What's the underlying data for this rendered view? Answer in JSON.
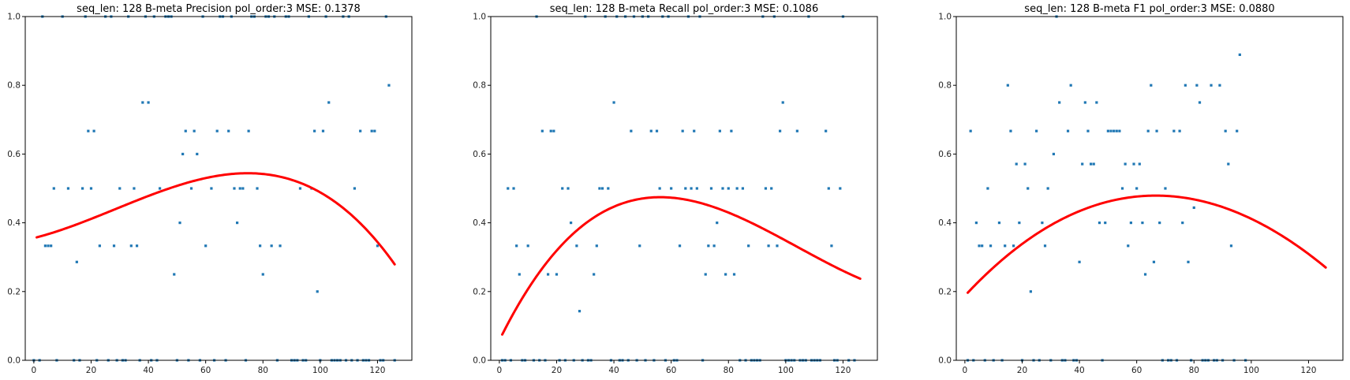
{
  "chart_data": [
    {
      "type": "scatter",
      "title": "seq_len: 128    B-meta    Precision    pol_order:3    MSE: 0.1378",
      "xlabel": "",
      "ylabel": "",
      "xlim": [
        -3,
        132
      ],
      "ylim": [
        0,
        1
      ],
      "xticks": [
        0,
        20,
        40,
        60,
        80,
        100,
        120
      ],
      "yticks": [
        0.0,
        0.2,
        0.4,
        0.6,
        0.8,
        1.0
      ],
      "grid": false,
      "point_color": "#1f77b4",
      "fit_color": "#ff0000",
      "points": [
        [
          0,
          0
        ],
        [
          2,
          0
        ],
        [
          3,
          1
        ],
        [
          4,
          0.333
        ],
        [
          5,
          0.333
        ],
        [
          6,
          0.333
        ],
        [
          7,
          0.5
        ],
        [
          8,
          0
        ],
        [
          10,
          1
        ],
        [
          12,
          0.5
        ],
        [
          14,
          0
        ],
        [
          15,
          0.286
        ],
        [
          16,
          0
        ],
        [
          17,
          0.5
        ],
        [
          18,
          1
        ],
        [
          19,
          0.667
        ],
        [
          20,
          0.5
        ],
        [
          21,
          0.667
        ],
        [
          22,
          0
        ],
        [
          23,
          0.333
        ],
        [
          25,
          1
        ],
        [
          26,
          0
        ],
        [
          27,
          1
        ],
        [
          28,
          0.333
        ],
        [
          29,
          0
        ],
        [
          30,
          0.5
        ],
        [
          31,
          0
        ],
        [
          32,
          0
        ],
        [
          33,
          1
        ],
        [
          34,
          0.333
        ],
        [
          35,
          0.5
        ],
        [
          36,
          0.333
        ],
        [
          37,
          0
        ],
        [
          38,
          0.75
        ],
        [
          39,
          1
        ],
        [
          40,
          0.75
        ],
        [
          41,
          0
        ],
        [
          42,
          1
        ],
        [
          43,
          0
        ],
        [
          44,
          0.5
        ],
        [
          46,
          1
        ],
        [
          47,
          1
        ],
        [
          48,
          1
        ],
        [
          49,
          0.25
        ],
        [
          50,
          0
        ],
        [
          51,
          0.4
        ],
        [
          52,
          0.6
        ],
        [
          53,
          0.667
        ],
        [
          54,
          0
        ],
        [
          55,
          0.5
        ],
        [
          56,
          0.667
        ],
        [
          57,
          0.6
        ],
        [
          58,
          0
        ],
        [
          59,
          1
        ],
        [
          60,
          0.333
        ],
        [
          62,
          0.5
        ],
        [
          63,
          0
        ],
        [
          64,
          0.667
        ],
        [
          65,
          1
        ],
        [
          66,
          1
        ],
        [
          67,
          0
        ],
        [
          68,
          0.667
        ],
        [
          69,
          1
        ],
        [
          70,
          0.5
        ],
        [
          71,
          0.4
        ],
        [
          72,
          0.5
        ],
        [
          73,
          0.5
        ],
        [
          74,
          0
        ],
        [
          75,
          0.667
        ],
        [
          76,
          1
        ],
        [
          77,
          1
        ],
        [
          78,
          0.5
        ],
        [
          79,
          0.333
        ],
        [
          80,
          0.25
        ],
        [
          81,
          1
        ],
        [
          82,
          1
        ],
        [
          83,
          0.333
        ],
        [
          84,
          1
        ],
        [
          85,
          0
        ],
        [
          86,
          0.333
        ],
        [
          88,
          1
        ],
        [
          89,
          1
        ],
        [
          90,
          0
        ],
        [
          91,
          0
        ],
        [
          92,
          0
        ],
        [
          93,
          0.5
        ],
        [
          94,
          0
        ],
        [
          95,
          0
        ],
        [
          96,
          1
        ],
        [
          97,
          0.5
        ],
        [
          98,
          0.667
        ],
        [
          99,
          0.2
        ],
        [
          100,
          0
        ],
        [
          101,
          0.667
        ],
        [
          102,
          1
        ],
        [
          103,
          0.75
        ],
        [
          104,
          0
        ],
        [
          105,
          0
        ],
        [
          106,
          0
        ],
        [
          107,
          0
        ],
        [
          108,
          1
        ],
        [
          109,
          0
        ],
        [
          110,
          1
        ],
        [
          111,
          0
        ],
        [
          112,
          0.5
        ],
        [
          113,
          0
        ],
        [
          114,
          0.667
        ],
        [
          115,
          0
        ],
        [
          116,
          0
        ],
        [
          117,
          0
        ],
        [
          118,
          0.667
        ],
        [
          119,
          0.667
        ],
        [
          120,
          0.333
        ],
        [
          121,
          0
        ],
        [
          122,
          0
        ],
        [
          123,
          1
        ],
        [
          124,
          0.8
        ],
        [
          126,
          0
        ]
      ],
      "fit_coeffs": [
        0.3555,
        0.0021,
        4.53e-05,
        -5.3e-07
      ],
      "fit_x_range": [
        1,
        126
      ]
    },
    {
      "type": "scatter",
      "title": "seq_len: 128    B-meta    Recall    pol_order:3    MSE: 0.1086",
      "xlabel": "",
      "ylabel": "",
      "xlim": [
        -3,
        132
      ],
      "ylim": [
        0,
        1
      ],
      "xticks": [
        0,
        20,
        40,
        60,
        80,
        100,
        120
      ],
      "yticks": [
        0.0,
        0.2,
        0.4,
        0.6,
        0.8,
        1.0
      ],
      "grid": false,
      "point_color": "#1f77b4",
      "fit_color": "#ff0000",
      "points": [
        [
          1,
          0
        ],
        [
          2,
          0
        ],
        [
          3,
          0.5
        ],
        [
          4,
          0
        ],
        [
          5,
          0.5
        ],
        [
          6,
          0.333
        ],
        [
          7,
          0.25
        ],
        [
          8,
          0
        ],
        [
          9,
          0
        ],
        [
          10,
          0.333
        ],
        [
          12,
          0
        ],
        [
          13,
          1
        ],
        [
          14,
          0
        ],
        [
          15,
          0.667
        ],
        [
          16,
          0
        ],
        [
          17,
          0.25
        ],
        [
          18,
          0.667
        ],
        [
          19,
          0.667
        ],
        [
          20,
          0.25
        ],
        [
          21,
          0
        ],
        [
          22,
          0.5
        ],
        [
          23,
          0
        ],
        [
          24,
          0.5
        ],
        [
          25,
          0.4
        ],
        [
          26,
          0
        ],
        [
          27,
          0.333
        ],
        [
          28,
          0.143
        ],
        [
          29,
          0
        ],
        [
          30,
          1
        ],
        [
          31,
          0
        ],
        [
          32,
          0
        ],
        [
          33,
          0.25
        ],
        [
          34,
          0.333
        ],
        [
          35,
          0.5
        ],
        [
          36,
          0.5
        ],
        [
          37,
          1
        ],
        [
          38,
          0.5
        ],
        [
          39,
          0
        ],
        [
          40,
          0.75
        ],
        [
          41,
          1
        ],
        [
          42,
          0
        ],
        [
          43,
          0
        ],
        [
          44,
          1
        ],
        [
          45,
          0
        ],
        [
          46,
          0.667
        ],
        [
          47,
          1
        ],
        [
          48,
          0
        ],
        [
          49,
          0.333
        ],
        [
          50,
          1
        ],
        [
          51,
          0
        ],
        [
          52,
          1
        ],
        [
          53,
          0.667
        ],
        [
          54,
          0
        ],
        [
          55,
          0.667
        ],
        [
          56,
          0.5
        ],
        [
          57,
          1
        ],
        [
          58,
          0
        ],
        [
          59,
          1
        ],
        [
          60,
          0.5
        ],
        [
          61,
          0
        ],
        [
          62,
          0
        ],
        [
          63,
          0.333
        ],
        [
          64,
          0.667
        ],
        [
          65,
          0.5
        ],
        [
          66,
          1
        ],
        [
          67,
          0.5
        ],
        [
          68,
          0.667
        ],
        [
          69,
          0.5
        ],
        [
          70,
          1
        ],
        [
          71,
          0
        ],
        [
          72,
          0.25
        ],
        [
          73,
          0.333
        ],
        [
          74,
          0.5
        ],
        [
          75,
          0.333
        ],
        [
          76,
          0.4
        ],
        [
          77,
          0.667
        ],
        [
          78,
          0.5
        ],
        [
          79,
          0.25
        ],
        [
          80,
          0.5
        ],
        [
          81,
          0.667
        ],
        [
          82,
          0.25
        ],
        [
          83,
          0.5
        ],
        [
          84,
          0
        ],
        [
          85,
          0.5
        ],
        [
          86,
          0
        ],
        [
          87,
          0.333
        ],
        [
          88,
          0
        ],
        [
          89,
          0
        ],
        [
          90,
          0
        ],
        [
          91,
          0
        ],
        [
          92,
          1
        ],
        [
          93,
          0.5
        ],
        [
          94,
          0.333
        ],
        [
          95,
          0.5
        ],
        [
          96,
          1
        ],
        [
          97,
          0.333
        ],
        [
          98,
          0.667
        ],
        [
          99,
          0.75
        ],
        [
          100,
          0
        ],
        [
          101,
          0
        ],
        [
          102,
          0
        ],
        [
          103,
          0
        ],
        [
          104,
          0.667
        ],
        [
          105,
          0
        ],
        [
          106,
          0
        ],
        [
          107,
          0
        ],
        [
          108,
          1
        ],
        [
          109,
          0
        ],
        [
          110,
          0
        ],
        [
          111,
          0
        ],
        [
          112,
          0
        ],
        [
          114,
          0.667
        ],
        [
          115,
          0.5
        ],
        [
          116,
          0.333
        ],
        [
          117,
          0
        ],
        [
          118,
          0
        ],
        [
          119,
          0.5
        ],
        [
          120,
          1
        ],
        [
          122,
          0
        ],
        [
          124,
          0
        ]
      ],
      "fit_coeffs": [
        0.0582,
        0.0169,
        -0.000206,
        6.6e-07
      ],
      "fit_x_range": [
        1,
        126
      ]
    },
    {
      "type": "scatter",
      "title": "seq_len: 128    B-meta    F1    pol_order:3    MSE: 0.0880",
      "xlabel": "",
      "ylabel": "",
      "xlim": [
        -3,
        132
      ],
      "ylim": [
        0,
        1
      ],
      "xticks": [
        0,
        20,
        40,
        60,
        80,
        100,
        120
      ],
      "yticks": [
        0.0,
        0.2,
        0.4,
        0.6,
        0.8,
        1.0
      ],
      "grid": false,
      "point_color": "#1f77b4",
      "fit_color": "#ff0000",
      "points": [
        [
          1,
          0
        ],
        [
          2,
          0.667
        ],
        [
          3,
          0
        ],
        [
          4,
          0.4
        ],
        [
          5,
          0.333
        ],
        [
          6,
          0.333
        ],
        [
          7,
          0
        ],
        [
          8,
          0.5
        ],
        [
          9,
          0.333
        ],
        [
          10,
          0
        ],
        [
          12,
          0.4
        ],
        [
          13,
          0
        ],
        [
          14,
          0.333
        ],
        [
          15,
          0.8
        ],
        [
          16,
          0.667
        ],
        [
          17,
          0.333
        ],
        [
          18,
          0.571
        ],
        [
          19,
          0.4
        ],
        [
          20,
          0
        ],
        [
          21,
          0.571
        ],
        [
          22,
          0.5
        ],
        [
          23,
          0.2
        ],
        [
          24,
          0
        ],
        [
          25,
          0.667
        ],
        [
          26,
          0
        ],
        [
          27,
          0.4
        ],
        [
          28,
          0.333
        ],
        [
          29,
          0.5
        ],
        [
          30,
          0
        ],
        [
          31,
          0.6
        ],
        [
          32,
          1
        ],
        [
          33,
          0.75
        ],
        [
          34,
          0
        ],
        [
          35,
          0
        ],
        [
          36,
          0.667
        ],
        [
          37,
          0.8
        ],
        [
          38,
          0
        ],
        [
          39,
          0
        ],
        [
          40,
          0.286
        ],
        [
          41,
          0.571
        ],
        [
          42,
          0.75
        ],
        [
          43,
          0.667
        ],
        [
          44,
          0.571
        ],
        [
          45,
          0.571
        ],
        [
          46,
          0.75
        ],
        [
          47,
          0.4
        ],
        [
          48,
          0
        ],
        [
          49,
          0.4
        ],
        [
          50,
          0.667
        ],
        [
          51,
          0.667
        ],
        [
          52,
          0.667
        ],
        [
          53,
          0.667
        ],
        [
          54,
          0.667
        ],
        [
          55,
          0.5
        ],
        [
          56,
          0.571
        ],
        [
          57,
          0.333
        ],
        [
          58,
          0.4
        ],
        [
          59,
          0.571
        ],
        [
          60,
          0.5
        ],
        [
          61,
          0.571
        ],
        [
          62,
          0.4
        ],
        [
          63,
          0.25
        ],
        [
          64,
          0.667
        ],
        [
          65,
          0.8
        ],
        [
          66,
          0.286
        ],
        [
          67,
          0.667
        ],
        [
          68,
          0.4
        ],
        [
          69,
          0
        ],
        [
          70,
          0.5
        ],
        [
          71,
          0
        ],
        [
          72,
          0
        ],
        [
          73,
          0.667
        ],
        [
          74,
          0
        ],
        [
          75,
          0.667
        ],
        [
          76,
          0.4
        ],
        [
          77,
          0.8
        ],
        [
          78,
          0.286
        ],
        [
          79,
          0
        ],
        [
          80,
          0.444
        ],
        [
          81,
          0.8
        ],
        [
          82,
          0.75
        ],
        [
          83,
          0
        ],
        [
          84,
          0
        ],
        [
          85,
          0
        ],
        [
          86,
          0.8
        ],
        [
          87,
          0
        ],
        [
          88,
          0
        ],
        [
          89,
          0.8
        ],
        [
          90,
          0
        ],
        [
          91,
          0.667
        ],
        [
          92,
          0.571
        ],
        [
          93,
          0.333
        ],
        [
          94,
          0
        ],
        [
          95,
          0.667
        ],
        [
          96,
          0.889
        ],
        [
          98,
          0
        ]
      ],
      "fit_coeffs": [
        0.1876,
        0.00897,
        -7.23e-05,
        5e-08
      ],
      "fit_x_range": [
        1,
        126
      ]
    }
  ]
}
